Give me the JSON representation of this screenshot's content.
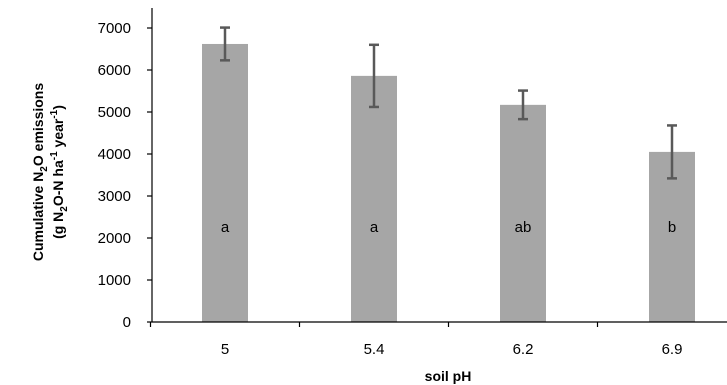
{
  "chart_data": {
    "type": "bar",
    "categories": [
      "5",
      "5.4",
      "6.2",
      "6.9"
    ],
    "values": [
      6620,
      5860,
      5170,
      4050
    ],
    "error": [
      390,
      740,
      340,
      630
    ],
    "labels": [
      "a",
      "a",
      "ab",
      "b"
    ],
    "title": "",
    "xlabel": "soil pH",
    "ylabel": {
      "line1_pre": "Cumulative N",
      "line1_sub": "2",
      "line1_post": "O emissions",
      "line2_a": "(g N",
      "line2_sub": "2",
      "line2_b": "O-N ha",
      "line2_sup1": "-1",
      "line2_c": " year",
      "line2_sup2": "-1",
      "line2_d": ")"
    },
    "yticks": [
      "0",
      "1000",
      "2000",
      "3000",
      "4000",
      "5000",
      "6000",
      "7000"
    ],
    "ylim": [
      0,
      7000
    ],
    "grid": false,
    "bar_color": "#a6a6a6",
    "error_color": "#595959"
  }
}
